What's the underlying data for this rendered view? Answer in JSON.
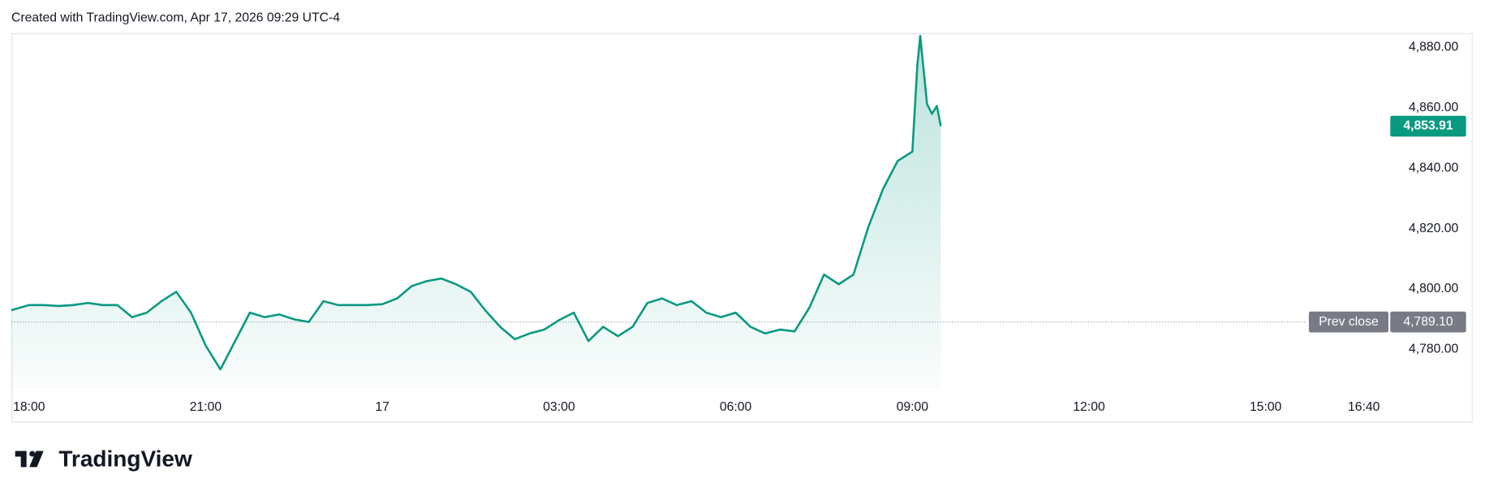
{
  "header": {
    "text": "Created with TradingView.com, Apr 17, 2026 09:29 UTC-4"
  },
  "brand": "TradingView",
  "chart_data": {
    "type": "line",
    "x": [
      "2026-04-16T17:42",
      "2026-04-16T18:00",
      "2026-04-16T18:15",
      "2026-04-16T18:30",
      "2026-04-16T18:45",
      "2026-04-16T19:00",
      "2026-04-16T19:15",
      "2026-04-16T19:30",
      "2026-04-16T19:45",
      "2026-04-16T20:00",
      "2026-04-16T20:15",
      "2026-04-16T20:30",
      "2026-04-16T20:45",
      "2026-04-16T21:00",
      "2026-04-16T21:15",
      "2026-04-16T21:30",
      "2026-04-16T21:45",
      "2026-04-16T22:00",
      "2026-04-16T22:15",
      "2026-04-16T22:30",
      "2026-04-16T22:45",
      "2026-04-16T23:00",
      "2026-04-16T23:15",
      "2026-04-16T23:30",
      "2026-04-16T23:45",
      "2026-04-17T00:00",
      "2026-04-17T00:15",
      "2026-04-17T00:30",
      "2026-04-17T00:45",
      "2026-04-17T01:00",
      "2026-04-17T01:15",
      "2026-04-17T01:30",
      "2026-04-17T01:45",
      "2026-04-17T02:00",
      "2026-04-17T02:15",
      "2026-04-17T02:30",
      "2026-04-17T02:45",
      "2026-04-17T03:00",
      "2026-04-17T03:15",
      "2026-04-17T03:30",
      "2026-04-17T03:45",
      "2026-04-17T04:00",
      "2026-04-17T04:15",
      "2026-04-17T04:30",
      "2026-04-17T04:45",
      "2026-04-17T05:00",
      "2026-04-17T05:15",
      "2026-04-17T05:30",
      "2026-04-17T05:45",
      "2026-04-17T06:00",
      "2026-04-17T06:15",
      "2026-04-17T06:30",
      "2026-04-17T06:45",
      "2026-04-17T07:00",
      "2026-04-17T07:15",
      "2026-04-17T07:30",
      "2026-04-17T07:45",
      "2026-04-17T08:00",
      "2026-04-17T08:15",
      "2026-04-17T08:30",
      "2026-04-17T08:45",
      "2026-04-17T09:00",
      "2026-04-17T09:05",
      "2026-04-17T09:08",
      "2026-04-17T09:15",
      "2026-04-17T09:20",
      "2026-04-17T09:25",
      "2026-04-17T09:29"
    ],
    "series": [
      {
        "color": "#089981",
        "values": [
          4793,
          4794.7,
          4794.7,
          4794.4,
          4794.7,
          4795.4,
          4794.7,
          4794.7,
          4790.7,
          4792.2,
          4796,
          4799.1,
          4792.2,
          4781.3,
          4773.4,
          4782.8,
          4792.2,
          4790.7,
          4791.6,
          4790,
          4789.1,
          4796,
          4794.7,
          4794.7,
          4794.7,
          4795,
          4796.9,
          4801,
          4802.6,
          4803.5,
          4801.6,
          4799.1,
          4792.9,
          4787.5,
          4783.4,
          4785.3,
          4786.6,
          4789.7,
          4792.2,
          4782.8,
          4787.5,
          4784.4,
          4787.5,
          4795.4,
          4796.9,
          4794.7,
          4796,
          4792.2,
          4790.7,
          4792.2,
          4787.5,
          4785.3,
          4786.6,
          4786,
          4793.8,
          4804.8,
          4801.6,
          4804.8,
          4820.4,
          4833,
          4842.4,
          4845.5,
          4873.7,
          4883.8,
          4861.2,
          4858,
          4860.6,
          4853.91
        ],
        "value_labels": [
          null,
          null,
          null,
          null,
          null,
          null,
          null,
          null,
          null,
          null,
          null,
          null,
          null,
          null,
          null,
          null,
          null,
          null,
          null,
          null,
          null,
          null,
          null,
          null,
          null,
          null,
          null,
          null,
          null,
          null,
          null,
          null,
          null,
          null,
          null,
          null,
          null,
          null,
          null,
          null,
          null,
          null,
          null,
          null,
          null,
          null,
          null,
          null,
          null,
          null,
          null,
          null,
          null,
          null,
          null,
          null,
          null,
          null,
          null,
          null,
          null,
          null,
          null,
          null,
          null,
          null,
          null,
          "4,853.91"
        ]
      }
    ],
    "prev_close": {
      "label": "Prev close",
      "value": 4789.1,
      "value_label": "4,789.10"
    },
    "xlim": [
      "2026-04-16T17:42",
      "2026-04-17T17:06"
    ],
    "xticks": [
      {
        "value": "2026-04-16T18:00",
        "label": "18:00"
      },
      {
        "value": "2026-04-16T21:00",
        "label": "21:00"
      },
      {
        "value": "2026-04-17T00:00",
        "label": "17"
      },
      {
        "value": "2026-04-17T03:00",
        "label": "03:00"
      },
      {
        "value": "2026-04-17T06:00",
        "label": "06:00"
      },
      {
        "value": "2026-04-17T09:00",
        "label": "09:00"
      },
      {
        "value": "2026-04-17T12:00",
        "label": "12:00"
      },
      {
        "value": "2026-04-17T15:00",
        "label": "15:00"
      },
      {
        "value": "2026-04-17T16:40",
        "label": "16:40"
      }
    ],
    "ylim": [
      4767.1,
      4884.7
    ],
    "yticks": [
      {
        "value": 4780,
        "label": "4,780.00"
      },
      {
        "value": 4800,
        "label": "4,800.00"
      },
      {
        "value": 4820,
        "label": "4,820.00"
      },
      {
        "value": 4840,
        "label": "4,840.00"
      },
      {
        "value": 4860,
        "label": "4,860.00"
      },
      {
        "value": 4880,
        "label": "4,880.00"
      }
    ]
  }
}
